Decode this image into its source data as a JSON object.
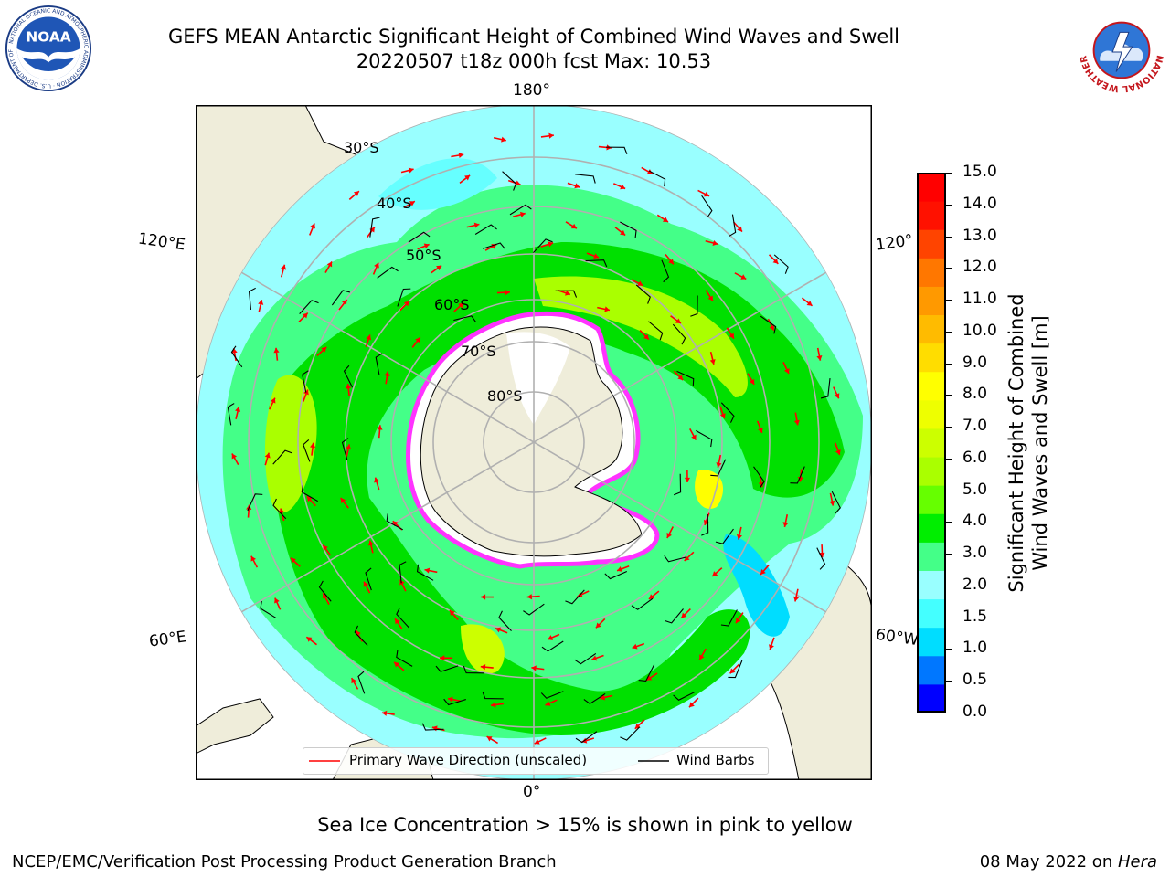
{
  "header": {
    "title_line1": "GEFS MEAN Antarctic Significant Height of Combined Wind Waves and Swell",
    "title_line2": "20220507 t18z 000h fcst   Max: 10.53"
  },
  "logos": {
    "left": "noaa-logo",
    "right": "nws-logo",
    "left_ring_text": "NATIONAL OCEANIC AND ATMOSPHERIC ADMINISTRATION · U.S. DEPARTMENT OF COMMERCE",
    "left_center_text": "NOAA",
    "right_ring_text": "NATIONAL WEATHER SERVICE"
  },
  "map": {
    "projection": "south-polar-stereographic",
    "longitude_labels": {
      "top": "180°",
      "bottom": "0°",
      "left_upper": "120°E",
      "left_lower": "60°E",
      "right_upper": "120°",
      "right_lower": "60°W"
    },
    "latitude_labels": [
      "30°S",
      "40°S",
      "50°S",
      "60°S",
      "70°S",
      "80°S"
    ],
    "colors": {
      "ocean_low": "#66ffff",
      "ocean_mid": "#33ff77",
      "ocean_high": "#00e000",
      "ocean_peak": "#ccff00",
      "land": "#efedda",
      "ice_edge": "#ff33ff",
      "wave_arrow": "#ff0000",
      "wind_barb": "#000000",
      "grid": "#b0b0b0"
    }
  },
  "colorbar": {
    "label": "Significant Height of Combined\nWind Waves and Swell [m]",
    "label_line1": "Significant Height of Combined",
    "label_line2": "Wind Waves and Swell [m]",
    "ticks": [
      "15.0",
      "14.0",
      "13.0",
      "12.0",
      "11.0",
      "10.0",
      "9.0",
      "8.0",
      "7.0",
      "6.0",
      "5.0",
      "4.0",
      "3.0",
      "2.0",
      "1.5",
      "1.0",
      "0.5",
      "0.0"
    ],
    "colors": [
      "#0000ff",
      "#0077ff",
      "#00ddff",
      "#44ffff",
      "#99ffff",
      "#44ff88",
      "#00ee00",
      "#66ff00",
      "#aaff00",
      "#ccff00",
      "#eeff00",
      "#ffff00",
      "#ffdd00",
      "#ffbb00",
      "#ff9900",
      "#ff7700",
      "#ff4400",
      "#ff1100",
      "#ff0000"
    ]
  },
  "legend": {
    "wave_label": "Primary Wave Direction (unscaled)",
    "barb_label": "Wind Barbs"
  },
  "footer": {
    "note": "Sea Ice Concentration > 15% is shown in pink to yellow",
    "credit_left": "NCEP/EMC/Verification Post Processing Product Generation Branch",
    "credit_date": "08 May 2022 on ",
    "credit_host": "Hera"
  }
}
